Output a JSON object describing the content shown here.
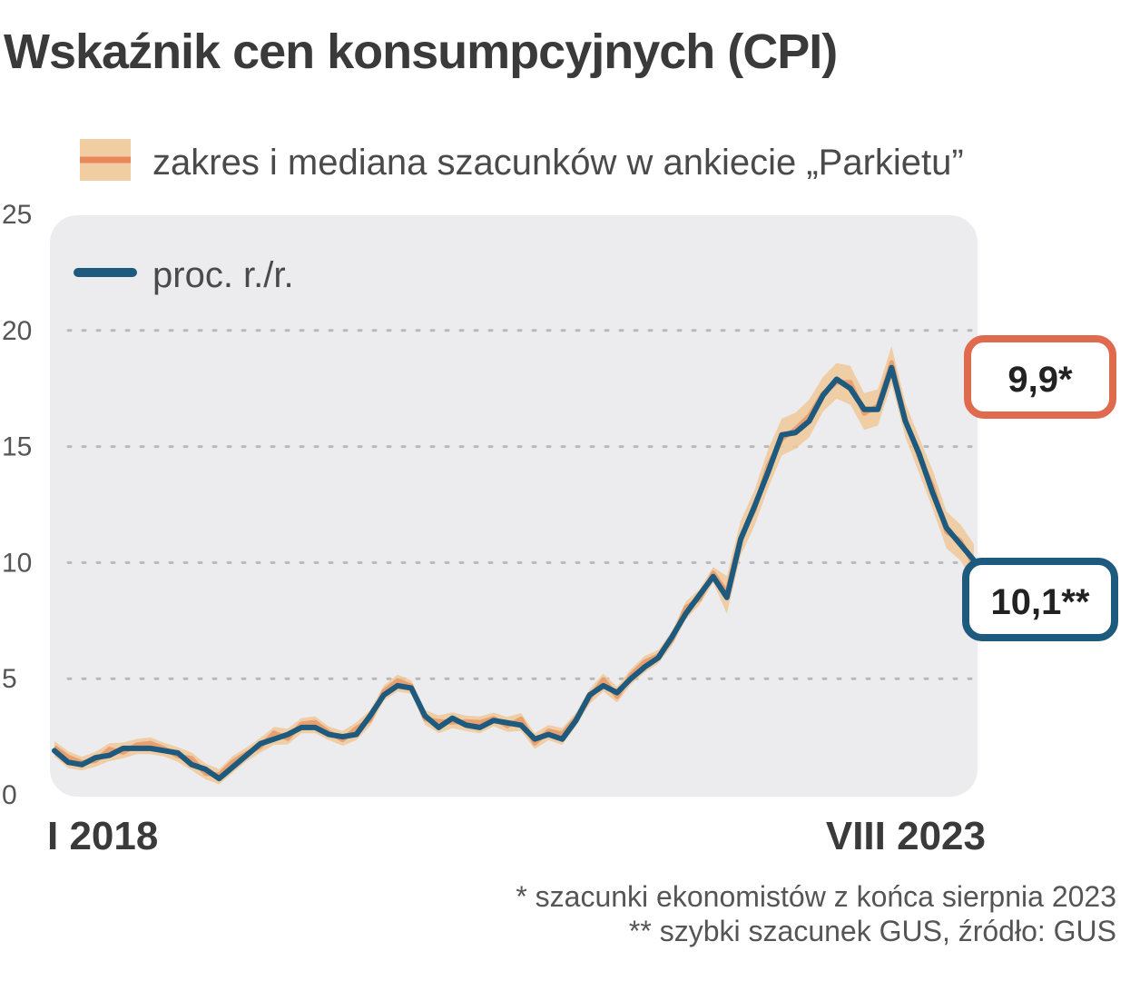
{
  "chart_data": {
    "type": "line",
    "title": "Wskaźnik cen konsumpcyjnych (CPI)",
    "legend": [
      {
        "label": "zakres i mediana szacunków w ankiecie „Parkietu”",
        "color": "#e8885a",
        "band_color": "#f0c898"
      },
      {
        "label": "proc. r./r.",
        "color": "#1d5a7e"
      }
    ],
    "ylim": [
      0,
      25
    ],
    "yticks": [
      0,
      5,
      10,
      15,
      20,
      25
    ],
    "ytick_labels": [
      "0",
      "5",
      "10",
      "15",
      "20",
      "25"
    ],
    "grid": "dotted horizontal",
    "x_start_label": "I 2018",
    "x_end_label": "VIII 2023",
    "series": [
      {
        "name": "proc. r./r.",
        "values": [
          1.9,
          1.4,
          1.3,
          1.6,
          1.7,
          2.0,
          2.0,
          2.0,
          1.9,
          1.8,
          1.3,
          1.1,
          0.7,
          1.2,
          1.7,
          2.2,
          2.4,
          2.6,
          2.9,
          2.9,
          2.6,
          2.5,
          2.6,
          3.4,
          4.3,
          4.7,
          4.6,
          3.4,
          2.9,
          3.3,
          3.0,
          2.9,
          3.2,
          3.1,
          3.0,
          2.4,
          2.6,
          2.4,
          3.2,
          4.3,
          4.7,
          4.4,
          5.0,
          5.5,
          5.9,
          6.8,
          7.8,
          8.6,
          9.4,
          8.5,
          11.0,
          12.4,
          13.9,
          15.5,
          15.6,
          16.1,
          17.2,
          17.9,
          17.5,
          16.6,
          16.6,
          18.4,
          16.1,
          14.7,
          13.0,
          11.5,
          10.8,
          10.1
        ],
        "color": "#1d5a7e"
      }
    ],
    "annotations": [
      {
        "label": "9,9*",
        "value": 9.9,
        "color": "#e06a4e"
      },
      {
        "label": "10,1**",
        "value": 10.1,
        "color": "#1d5a7e"
      }
    ]
  },
  "footnotes": [
    "* szacunki ekonomistów z końca sierpnia 2023",
    "** szybki szacunek GUS, źródło: GUS"
  ]
}
